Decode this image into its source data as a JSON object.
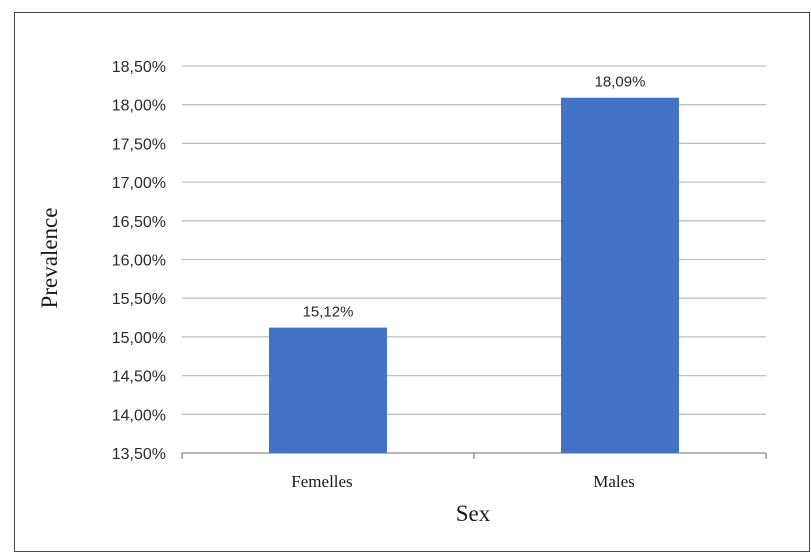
{
  "chart_data": {
    "type": "bar",
    "categories": [
      "Femelles",
      "Males"
    ],
    "values": [
      15.12,
      18.09
    ],
    "data_labels": [
      "15,12%",
      "18,09%"
    ],
    "title": "",
    "xlabel": "Sex",
    "ylabel": "Prevalence",
    "ylim": [
      13.5,
      18.5
    ],
    "yticks": [
      13.5,
      14.0,
      14.5,
      15.0,
      15.5,
      16.0,
      16.5,
      17.0,
      17.5,
      18.0,
      18.5
    ],
    "ytick_labels": [
      "13,50%",
      "14,00%",
      "14,50%",
      "15,00%",
      "15,50%",
      "16,00%",
      "16,50%",
      "17,00%",
      "17,50%",
      "18,00%",
      "18,50%"
    ],
    "grid": true,
    "legend": "none",
    "bar_color": "#4472C4",
    "grid_color": "#bfbfbf"
  }
}
